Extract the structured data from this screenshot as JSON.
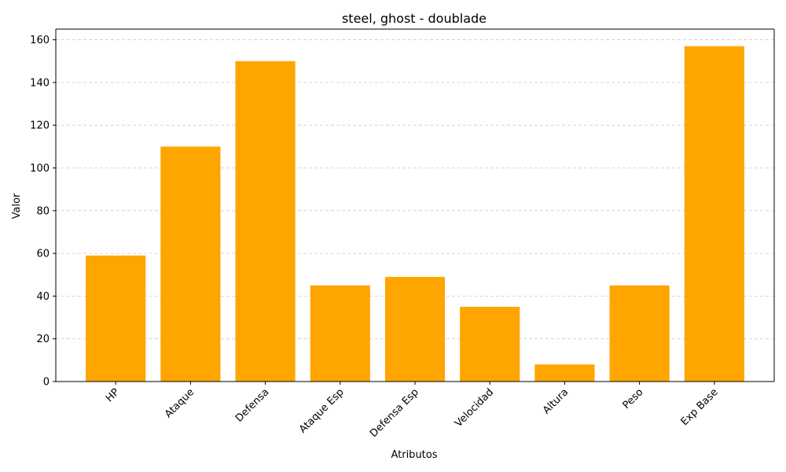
{
  "chart_data": {
    "type": "bar",
    "title": "steel, ghost - doublade",
    "xlabel": "Atributos",
    "ylabel": "Valor",
    "categories": [
      "HP",
      "Ataque",
      "Defensa",
      "Ataque Esp",
      "Defensa Esp",
      "Velocidad",
      "Altura",
      "Peso",
      "Exp Base"
    ],
    "values": [
      59,
      110,
      150,
      45,
      49,
      35,
      8,
      45,
      157
    ],
    "ylim": [
      0,
      165
    ],
    "yticks": [
      0,
      20,
      40,
      60,
      80,
      100,
      120,
      140,
      160
    ],
    "grid": "y-dashed",
    "colors": {
      "bar": "#FFA500",
      "grid": "#cccccc",
      "axis": "#000000"
    }
  }
}
